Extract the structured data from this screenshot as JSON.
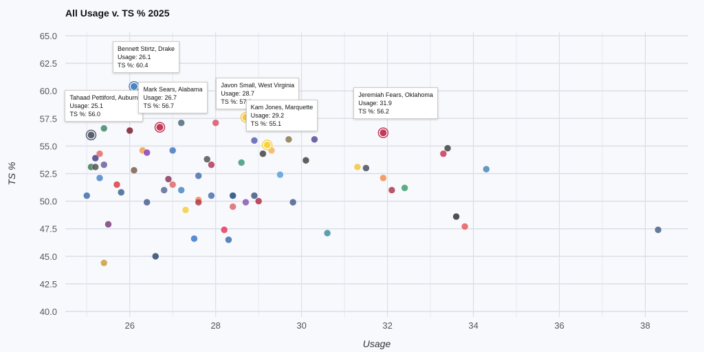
{
  "chart_data": {
    "type": "scatter",
    "title": "All Usage v. TS % 2025",
    "xlabel": "Usage",
    "ylabel": "TS %",
    "xlim": [
      24.5,
      39
    ],
    "ylim": [
      40,
      65
    ],
    "xticks": [
      "26",
      "28",
      "30",
      "32",
      "34",
      "36",
      "38"
    ],
    "yticks": [
      "40.0",
      "42.5",
      "45.0",
      "47.5",
      "50.0",
      "52.5",
      "55.0",
      "57.5",
      "60.0",
      "62.5",
      "65.0"
    ],
    "grid": true,
    "highlighted": [
      {
        "name": "Tahaad Pettiford, Auburn",
        "x": 25.1,
        "y": 56.0,
        "color": "#5a6070",
        "usage_label": "Usage: 25.1",
        "ts_label": "TS %: 56.0"
      },
      {
        "name": "Bennett Stirtz, Drake",
        "x": 26.1,
        "y": 60.4,
        "color": "#4a86c0",
        "usage_label": "Usage: 26.1",
        "ts_label": "TS %: 60.4"
      },
      {
        "name": "Mark Sears, Alabama",
        "x": 26.7,
        "y": 56.7,
        "color": "#c23a5a",
        "usage_label": "Usage: 26.7",
        "ts_label": "TS %: 56.7"
      },
      {
        "name": "Javon Small, West Virginia",
        "x": 28.7,
        "y": 57.6,
        "color": "#f5c842",
        "usage_label": "Usage: 28.7",
        "ts_label": "TS %: 57.6"
      },
      {
        "name": "Kam Jones, Marquette",
        "x": 29.2,
        "y": 55.1,
        "color": "#f5d442",
        "usage_label": "Usage: 29.2",
        "ts_label": "TS %: 55.1"
      },
      {
        "name": "Jeremiah Fears, Oklahoma",
        "x": 31.9,
        "y": 56.2,
        "color": "#c23a5a",
        "usage_label": "Usage: 31.9",
        "ts_label": "TS %: 56.2"
      }
    ],
    "points": [
      {
        "x": 25.4,
        "y": 56.6,
        "color": "#3f8a6a"
      },
      {
        "x": 26.0,
        "y": 56.4,
        "color": "#7a1f2e"
      },
      {
        "x": 26.5,
        "y": 60.0,
        "color": "#7a4fa0"
      },
      {
        "x": 27.2,
        "y": 57.1,
        "color": "#4e6a80"
      },
      {
        "x": 28.0,
        "y": 57.1,
        "color": "#d9566a"
      },
      {
        "x": 25.3,
        "y": 54.3,
        "color": "#e86a6a"
      },
      {
        "x": 25.2,
        "y": 53.9,
        "color": "#4a3f8a"
      },
      {
        "x": 25.1,
        "y": 53.1,
        "color": "#3f7a5a"
      },
      {
        "x": 25.2,
        "y": 53.1,
        "color": "#555555"
      },
      {
        "x": 25.4,
        "y": 53.3,
        "color": "#6a5fa0"
      },
      {
        "x": 26.3,
        "y": 54.6,
        "color": "#f0a050"
      },
      {
        "x": 26.4,
        "y": 54.4,
        "color": "#8a40b0"
      },
      {
        "x": 27.0,
        "y": 54.6,
        "color": "#4a78c0"
      },
      {
        "x": 27.8,
        "y": 53.8,
        "color": "#555555"
      },
      {
        "x": 27.9,
        "y": 53.3,
        "color": "#b03a5a"
      },
      {
        "x": 28.6,
        "y": 53.5,
        "color": "#3f9a7a"
      },
      {
        "x": 29.1,
        "y": 54.3,
        "color": "#444444"
      },
      {
        "x": 29.3,
        "y": 54.6,
        "color": "#f5b060"
      },
      {
        "x": 28.9,
        "y": 55.5,
        "color": "#5a60b0"
      },
      {
        "x": 25.3,
        "y": 52.1,
        "color": "#4a88c8"
      },
      {
        "x": 26.1,
        "y": 52.8,
        "color": "#7a6050"
      },
      {
        "x": 26.9,
        "y": 52.0,
        "color": "#8a3a5a"
      },
      {
        "x": 27.0,
        "y": 51.5,
        "color": "#e06a6a"
      },
      {
        "x": 25.7,
        "y": 51.5,
        "color": "#d94040"
      },
      {
        "x": 25.8,
        "y": 50.8,
        "color": "#3f6590"
      },
      {
        "x": 25.0,
        "y": 50.5,
        "color": "#3f70a8"
      },
      {
        "x": 26.8,
        "y": 51.0,
        "color": "#5a6a98"
      },
      {
        "x": 27.2,
        "y": 51.0,
        "color": "#4a8ac0"
      },
      {
        "x": 26.4,
        "y": 49.9,
        "color": "#4a6090"
      },
      {
        "x": 27.6,
        "y": 52.3,
        "color": "#4a70b0"
      },
      {
        "x": 27.6,
        "y": 50.1,
        "color": "#f08040"
      },
      {
        "x": 27.6,
        "y": 49.9,
        "color": "#b04050"
      },
      {
        "x": 27.9,
        "y": 50.5,
        "color": "#4a70b0"
      },
      {
        "x": 28.4,
        "y": 50.5,
        "color": "#1f4a80"
      },
      {
        "x": 28.9,
        "y": 50.5,
        "color": "#3f5a80"
      },
      {
        "x": 28.4,
        "y": 49.5,
        "color": "#d96a70"
      },
      {
        "x": 28.7,
        "y": 49.9,
        "color": "#8a5ab0"
      },
      {
        "x": 29.0,
        "y": 50.0,
        "color": "#b03050"
      },
      {
        "x": 27.3,
        "y": 49.2,
        "color": "#f5d040"
      },
      {
        "x": 25.5,
        "y": 47.9,
        "color": "#7a4080"
      },
      {
        "x": 28.2,
        "y": 47.4,
        "color": "#e83a5a"
      },
      {
        "x": 27.5,
        "y": 46.6,
        "color": "#3f78d0"
      },
      {
        "x": 28.3,
        "y": 46.5,
        "color": "#3f70b0"
      },
      {
        "x": 26.6,
        "y": 45.0,
        "color": "#2f4a70"
      },
      {
        "x": 25.4,
        "y": 44.4,
        "color": "#c8a040"
      },
      {
        "x": 29.7,
        "y": 55.6,
        "color": "#8a7a50"
      },
      {
        "x": 30.3,
        "y": 55.6,
        "color": "#5a4a98"
      },
      {
        "x": 30.1,
        "y": 53.7,
        "color": "#444444"
      },
      {
        "x": 29.5,
        "y": 52.4,
        "color": "#5aa0e0"
      },
      {
        "x": 29.8,
        "y": 49.9,
        "color": "#4a6090"
      },
      {
        "x": 30.6,
        "y": 47.1,
        "color": "#3f90a0"
      },
      {
        "x": 31.3,
        "y": 53.1,
        "color": "#f5c842"
      },
      {
        "x": 31.5,
        "y": 53.0,
        "color": "#4a5060"
      },
      {
        "x": 31.9,
        "y": 52.1,
        "color": "#f09050"
      },
      {
        "x": 32.1,
        "y": 51.0,
        "color": "#b03a50"
      },
      {
        "x": 32.4,
        "y": 51.2,
        "color": "#3fa070"
      },
      {
        "x": 33.3,
        "y": 54.3,
        "color": "#c83a5a"
      },
      {
        "x": 33.4,
        "y": 54.8,
        "color": "#444444"
      },
      {
        "x": 33.6,
        "y": 48.6,
        "color": "#333333"
      },
      {
        "x": 33.8,
        "y": 47.7,
        "color": "#e85a5a"
      },
      {
        "x": 34.3,
        "y": 52.9,
        "color": "#4a88b8"
      },
      {
        "x": 38.3,
        "y": 47.4,
        "color": "#4a6588"
      }
    ]
  }
}
